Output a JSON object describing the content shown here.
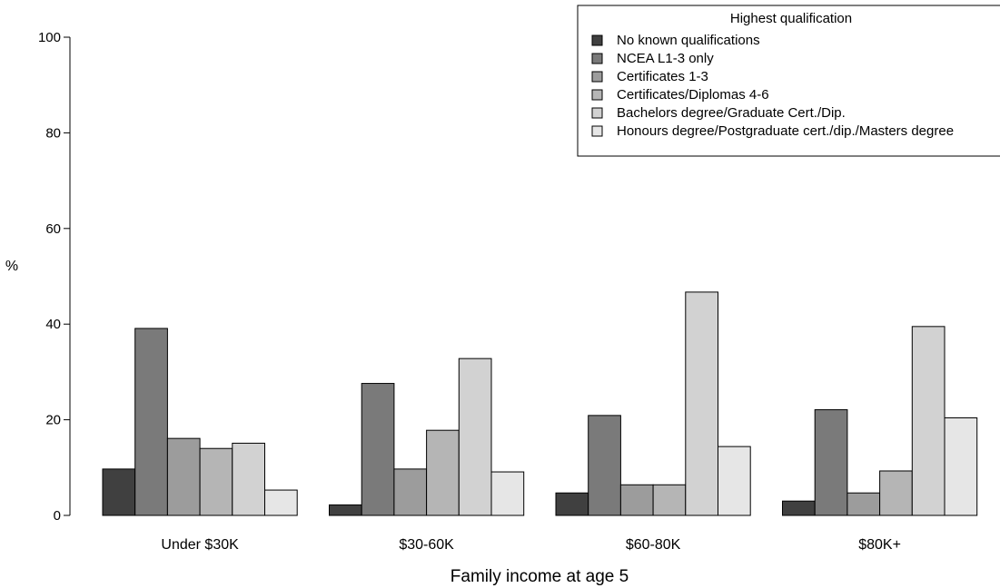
{
  "chart_data": {
    "type": "bar",
    "title": "",
    "xlabel": "Family income at age 5",
    "ylabel": "%",
    "ylim": [
      0,
      100
    ],
    "yticks": [
      0,
      20,
      40,
      60,
      80,
      100
    ],
    "grid": false,
    "legend_title": "Highest qualification",
    "legend_position": "top-right",
    "categories": [
      "Under $30K",
      "$30-60K",
      "$60-80K",
      "$80K+"
    ],
    "series": [
      {
        "name": "No known qualifications",
        "color": "#404040",
        "values": [
          9.7,
          2.2,
          4.7,
          3.0
        ]
      },
      {
        "name": "NCEA L1-3 only",
        "color": "#7a7a7a",
        "values": [
          39.1,
          27.6,
          20.9,
          22.1
        ]
      },
      {
        "name": "Certificates 1-3",
        "color": "#9c9c9c",
        "values": [
          16.1,
          9.7,
          6.4,
          4.7
        ]
      },
      {
        "name": "Certificates/Diplomas 4-6",
        "color": "#b5b5b5",
        "values": [
          14.0,
          17.8,
          6.4,
          9.3
        ]
      },
      {
        "name": "Bachelors degree/Graduate Cert./Dip.",
        "color": "#d2d2d2",
        "values": [
          15.1,
          32.8,
          46.7,
          39.5
        ]
      },
      {
        "name": "Honours degree/Postgraduate cert./dip./Masters degree",
        "color": "#e6e6e6",
        "values": [
          5.3,
          9.1,
          14.4,
          20.4
        ]
      }
    ]
  }
}
